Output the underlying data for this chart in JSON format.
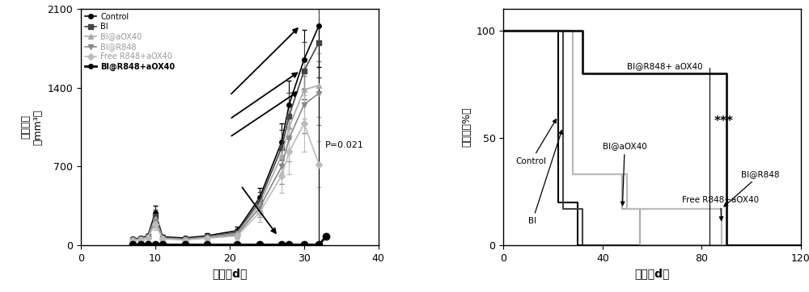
{
  "left_chart": {
    "xlabel": "时间（d）",
    "ylabel_top": "（mm³）",
    "ylabel_bottom": "肿瑞体积",
    "ylim": [
      0,
      2100
    ],
    "xlim": [
      0,
      40
    ],
    "yticks": [
      0,
      700,
      1400,
      2100
    ],
    "xticks": [
      0,
      10,
      20,
      30,
      40
    ],
    "p_text": "P=0.021",
    "series_order": [
      "Control",
      "BI",
      "BI@aOX40",
      "BI@R848",
      "Free R848+aOX40",
      "BI@R848+aOX40"
    ],
    "series": {
      "Control": {
        "color": "#000000",
        "bold": false,
        "lw": 1.2,
        "x": [
          7,
          8,
          9,
          10,
          11,
          14,
          17,
          21,
          24,
          27,
          28,
          30,
          32
        ],
        "y": [
          55,
          65,
          85,
          290,
          75,
          65,
          85,
          130,
          420,
          920,
          1250,
          1650,
          1950
        ],
        "yerr": [
          12,
          12,
          18,
          60,
          18,
          12,
          22,
          35,
          90,
          160,
          210,
          260,
          370
        ],
        "marker": "o",
        "ms": 4
      },
      "BI": {
        "color": "#444444",
        "bold": false,
        "lw": 1.2,
        "x": [
          7,
          8,
          9,
          10,
          11,
          14,
          17,
          21,
          24,
          27,
          28,
          30,
          32
        ],
        "y": [
          52,
          58,
          78,
          260,
          68,
          58,
          78,
          115,
          390,
          870,
          1150,
          1550,
          1800
        ],
        "yerr": [
          12,
          12,
          18,
          55,
          18,
          12,
          22,
          32,
          85,
          155,
          205,
          255,
          310
        ],
        "marker": "s",
        "ms": 4
      },
      "BI@aOX40": {
        "color": "#aaaaaa",
        "bold": false,
        "lw": 1.2,
        "x": [
          7,
          8,
          9,
          10,
          11,
          14,
          17,
          21,
          24,
          27,
          28,
          30,
          32
        ],
        "y": [
          50,
          55,
          73,
          240,
          63,
          52,
          73,
          105,
          360,
          800,
          1050,
          1380,
          1420
        ],
        "yerr": [
          10,
          10,
          16,
          52,
          16,
          10,
          20,
          30,
          82,
          152,
          202,
          252,
          282
        ],
        "marker": "^",
        "ms": 4
      },
      "BI@R848": {
        "color": "#888888",
        "bold": false,
        "lw": 1.2,
        "x": [
          7,
          8,
          9,
          10,
          11,
          14,
          17,
          21,
          24,
          27,
          28,
          30,
          32
        ],
        "y": [
          47,
          52,
          70,
          210,
          60,
          50,
          68,
          95,
          330,
          700,
          950,
          1250,
          1350
        ],
        "yerr": [
          10,
          10,
          16,
          52,
          16,
          10,
          20,
          30,
          82,
          152,
          202,
          252,
          282
        ],
        "marker": "v",
        "ms": 4
      },
      "Free R848+aOX40": {
        "color": "#bbbbbb",
        "bold": false,
        "lw": 1.2,
        "x": [
          7,
          8,
          9,
          10,
          11,
          14,
          17,
          21,
          24,
          27,
          28,
          30,
          32
        ],
        "y": [
          44,
          50,
          67,
          190,
          57,
          47,
          63,
          83,
          290,
          620,
          830,
          1080,
          720
        ],
        "yerr": [
          10,
          10,
          16,
          52,
          16,
          10,
          20,
          30,
          82,
          152,
          202,
          252,
          202
        ],
        "marker": "D",
        "ms": 4
      },
      "BI@R848+aOX40": {
        "color": "#000000",
        "bold": true,
        "lw": 2.0,
        "x": [
          7,
          8,
          9,
          10,
          11,
          14,
          17,
          21,
          24,
          27,
          28,
          30,
          32,
          33
        ],
        "y": [
          5,
          5,
          5,
          5,
          5,
          5,
          5,
          5,
          5,
          5,
          5,
          5,
          5,
          80
        ],
        "yerr": [
          2,
          2,
          2,
          2,
          2,
          2,
          2,
          2,
          2,
          2,
          2,
          2,
          2,
          22
        ],
        "marker": "o",
        "ms": 6
      }
    }
  },
  "right_chart": {
    "xlabel": "时间（d）",
    "ylabel": "生存率（%）",
    "ylim": [
      0,
      110
    ],
    "xlim": [
      0,
      120
    ],
    "yticks": [
      0,
      50,
      100
    ],
    "xticks": [
      0,
      40,
      80,
      120
    ],
    "significance": "***",
    "series": {
      "Control": {
        "color": "#000000",
        "lw": 1.5,
        "x": [
          0,
          22,
          22,
          30,
          30,
          120
        ],
        "y": [
          100,
          100,
          20,
          20,
          0,
          0
        ]
      },
      "BI": {
        "color": "#444444",
        "lw": 1.5,
        "x": [
          0,
          24,
          24,
          32,
          32,
          120
        ],
        "y": [
          100,
          100,
          17,
          17,
          0,
          0
        ]
      },
      "BI@aOX40": {
        "color": "#aaaaaa",
        "lw": 1.5,
        "x": [
          0,
          28,
          28,
          48,
          48,
          55,
          55,
          120
        ],
        "y": [
          100,
          100,
          33,
          33,
          17,
          17,
          0,
          0
        ]
      },
      "BI@R848": {
        "color": "#888888",
        "lw": 1.5,
        "x": [
          0,
          28,
          28,
          50,
          50,
          88,
          88,
          120
        ],
        "y": [
          100,
          100,
          33,
          33,
          17,
          17,
          0,
          0
        ]
      },
      "Free R848+aOX40": {
        "color": "#bbbbbb",
        "lw": 1.5,
        "x": [
          0,
          28,
          28,
          50,
          50,
          88,
          88,
          120
        ],
        "y": [
          100,
          100,
          33,
          33,
          17,
          17,
          0,
          0
        ]
      },
      "BI@R848+aOX40": {
        "color": "#111111",
        "lw": 2.0,
        "x": [
          0,
          32,
          32,
          90,
          90,
          120
        ],
        "y": [
          100,
          100,
          80,
          80,
          0,
          0
        ]
      }
    }
  },
  "bg_color": "#ffffff"
}
